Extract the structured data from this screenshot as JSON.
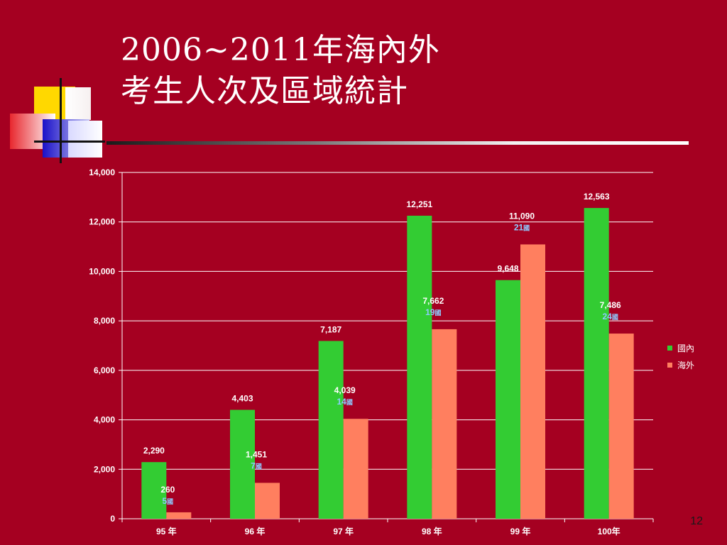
{
  "title": {
    "line1": "2006~2011年海內外",
    "line2": "考生人次及區域統計"
  },
  "page_number": "12",
  "colors": {
    "background": "#a50021",
    "domestic": "#33cc33",
    "overseas": "#ff7f5f",
    "country_label": "#8ecbff",
    "text": "#ffffff"
  },
  "chart_data": {
    "type": "bar",
    "categories": [
      "95 年",
      "96 年",
      "97 年",
      "98 年",
      "99 年",
      "100年"
    ],
    "series": [
      {
        "name": "國內",
        "values": [
          2290,
          4403,
          7187,
          12251,
          9648,
          12563
        ],
        "labels": [
          "2,290",
          "4,403",
          "7,187",
          "12,251",
          "9,648",
          "12,563"
        ]
      },
      {
        "name": "海外",
        "values": [
          260,
          1451,
          4039,
          7662,
          11090,
          7486
        ],
        "labels": [
          "260",
          "1,451",
          "4,039",
          "7,662",
          "11,090",
          "7,486"
        ],
        "country_counts": [
          "5",
          "7",
          "14",
          "19",
          "21",
          "24"
        ]
      }
    ],
    "country_unit": "國",
    "yticks": [
      "0",
      "2,000",
      "4,000",
      "6,000",
      "8,000",
      "10,000",
      "12,000",
      "14,000"
    ],
    "ylim": [
      0,
      14000
    ],
    "grid": true,
    "legend_position": "right"
  }
}
